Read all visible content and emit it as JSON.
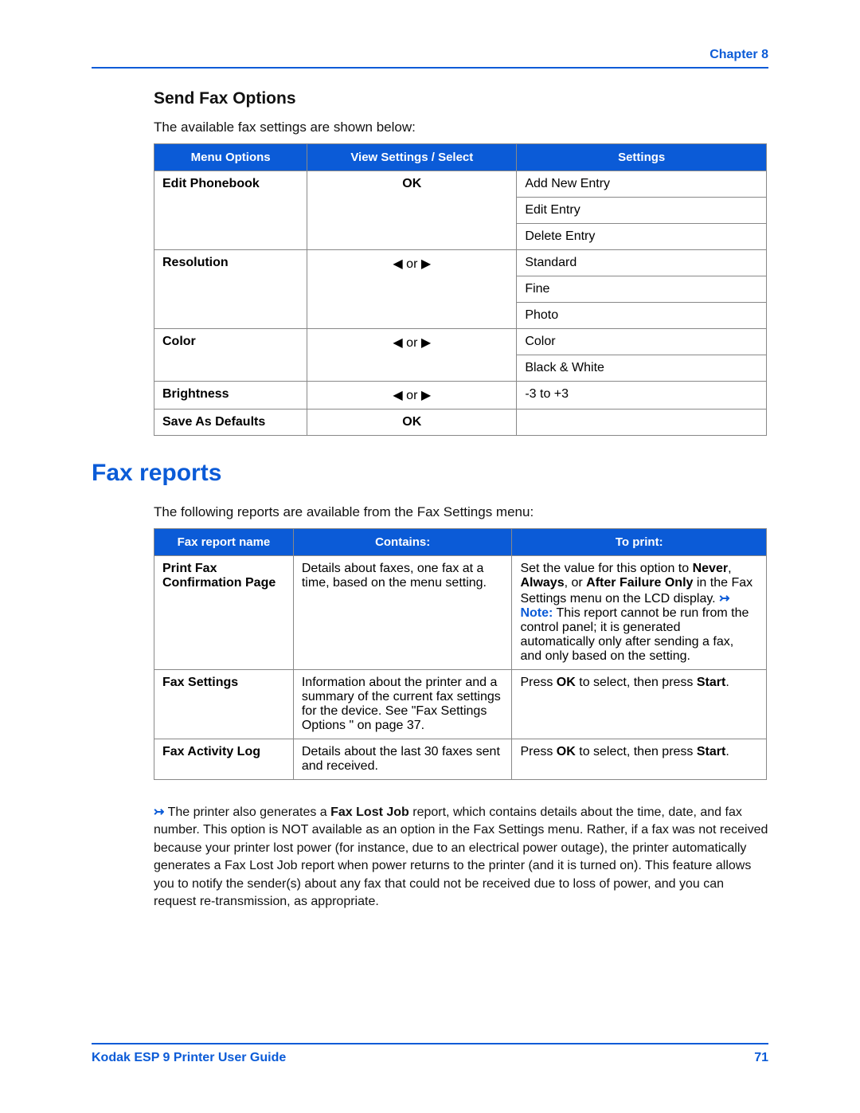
{
  "header": {
    "chapter": "Chapter 8"
  },
  "section1": {
    "heading": "Send Fax Options",
    "intro": "The available fax settings are shown below:",
    "th1": "Menu Options",
    "th2": "View Settings / Select",
    "th3": "Settings",
    "rows": {
      "editPhonebook": "Edit Phonebook",
      "ok": "OK",
      "addNewEntry": "Add New Entry",
      "editEntry": "Edit Entry",
      "deleteEntry": "Delete Entry",
      "resolution": "Resolution",
      "arrows": "◀ or ▶",
      "standard": "Standard",
      "fine": "Fine",
      "photo": "Photo",
      "color": "Color",
      "colorVal": "Color",
      "bw": "Black & White",
      "brightness": "Brightness",
      "brightnessRange": "-3 to +3",
      "saveDefaults": "Save As Defaults"
    }
  },
  "section2": {
    "heading": "Fax reports",
    "intro": "The following reports are available from the Fax Settings menu:",
    "th1": "Fax report name",
    "th2": "Contains:",
    "th3": "To print:",
    "rows": {
      "r1name": "Print Fax Confirmation Page",
      "r1contains": "Details about faxes, one fax at a time, based on the menu setting.",
      "r1toprintA": "Set the value for this option to ",
      "never": "Never",
      "comma1": ", ",
      "always": "Always",
      "or": ", or ",
      "afo": "After Failure Only",
      "r1toprintB": " in the Fax Settings menu on the LCD display. ",
      "noteLabel": "Note:",
      "r1toprintC": " This report cannot be run from the control panel; it is generated automatically only after sending a fax, and only based on the setting.",
      "r2name": "Fax Settings",
      "r2contains": "Information about the printer and a summary of the current fax settings for the device. See \"Fax Settings Options \" on page 37.",
      "r2toprintA": "Press ",
      "okb": "OK",
      "r2toprintB": " to select, then press ",
      "startb": "Start",
      "dot": ".",
      "r3name": "Fax Activity Log",
      "r3contains": "Details about the last 30 faxes sent and received."
    },
    "footnoteA": "The printer also generates a ",
    "faxLostJob": "Fax Lost Job",
    "footnoteB": " report, which contains details about the time, date, and fax number. This option is NOT available as an option in the Fax Settings menu. Rather, if a fax was not received because your printer lost power (for instance, due to an electrical power outage), the printer automatically generates a Fax Lost Job report when power returns to the printer (and it is turned on). This feature allows you to notify the sender(s) about any fax that could not be received due to loss of power, and you can request re-transmission, as appropriate."
  },
  "footer": {
    "title": "Kodak ESP 9 Printer User Guide",
    "page": "71"
  },
  "colors": {
    "brand": "#0b5bd7",
    "text": "#111111",
    "border": "#888888",
    "bg": "#ffffff"
  }
}
